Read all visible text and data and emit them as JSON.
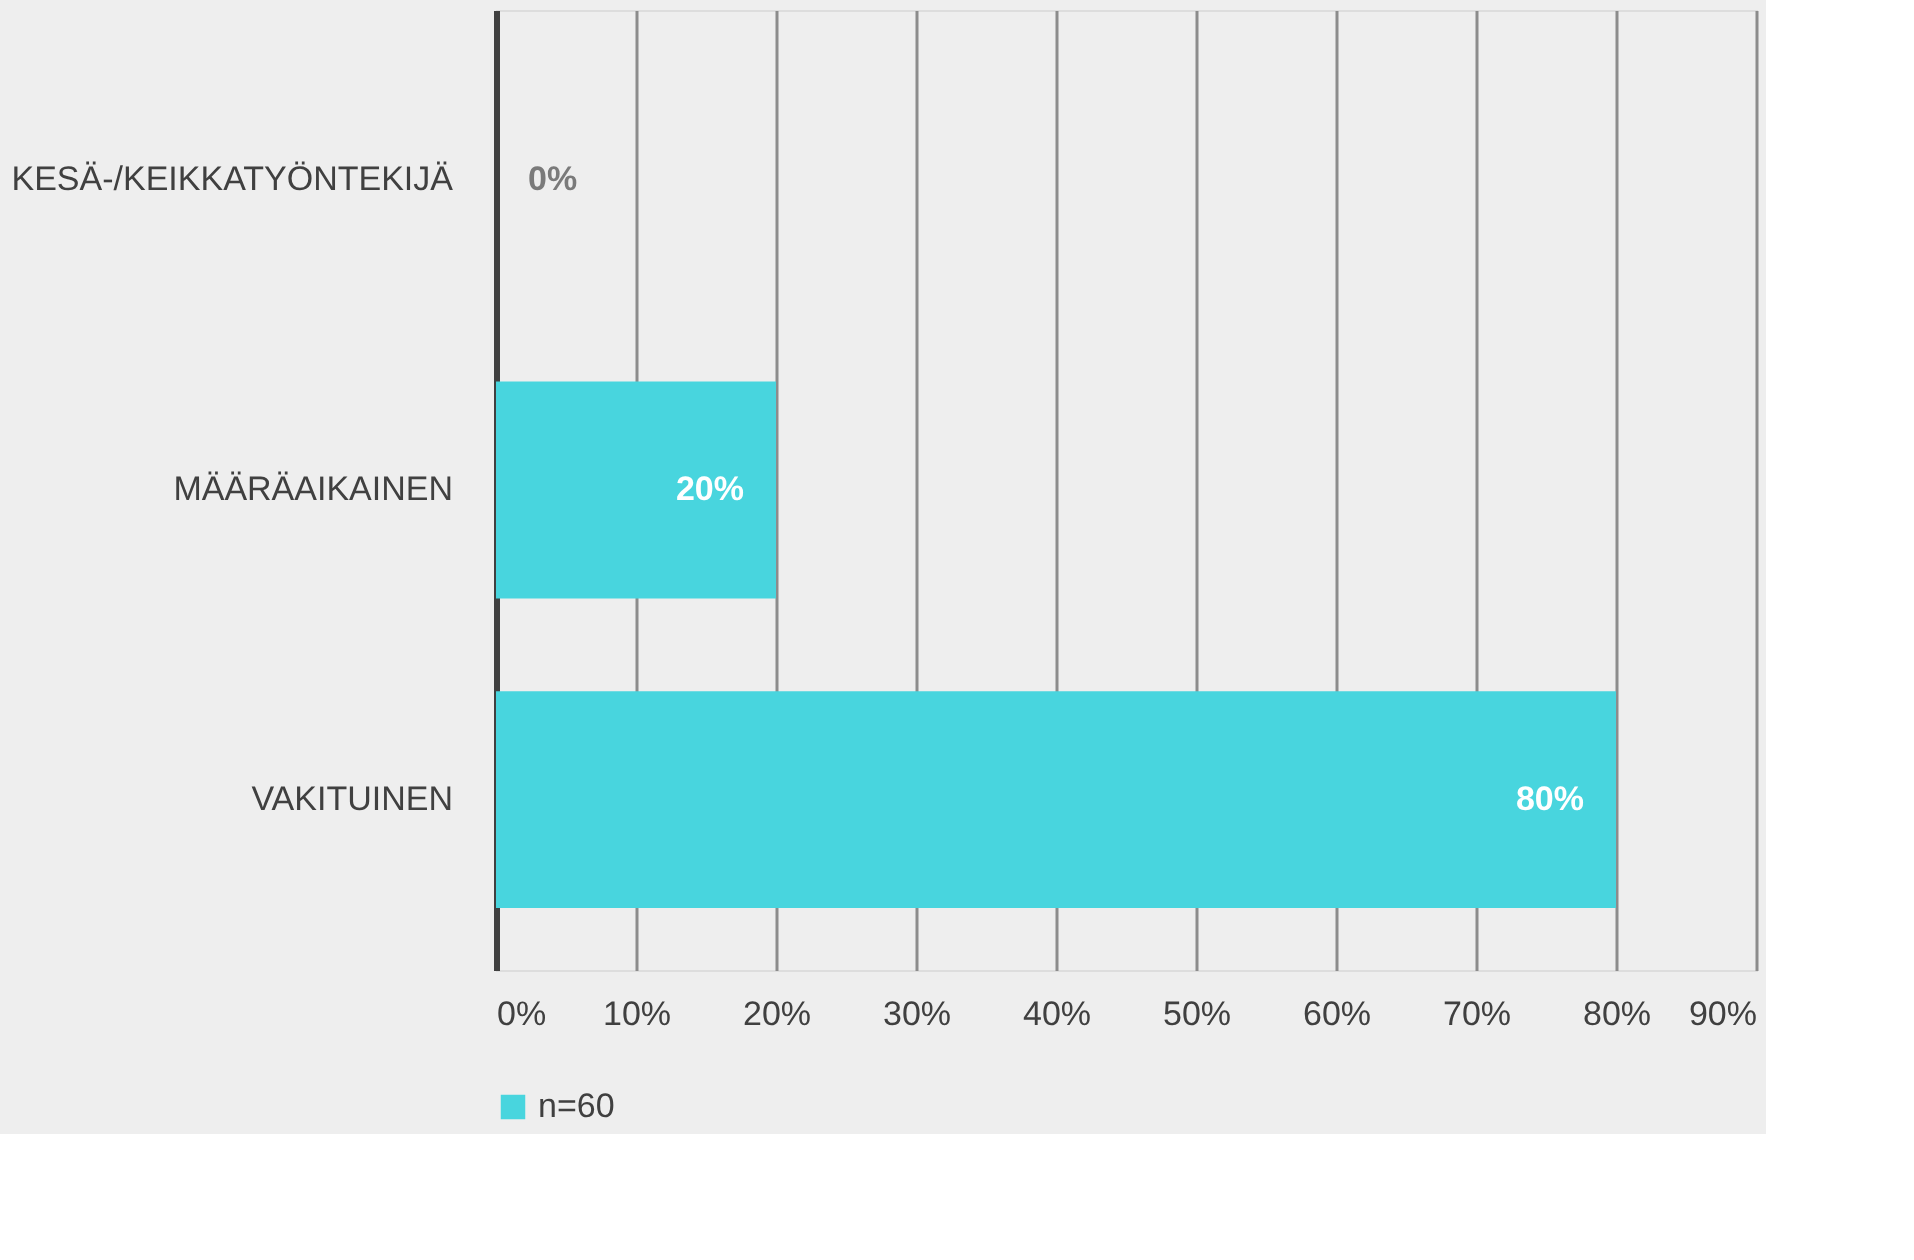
{
  "chart_data": {
    "type": "bar",
    "orientation": "horizontal",
    "categories": [
      "KESÄ-/KEIKKATYÖNTEKIJÄ",
      "MÄÄRÄAIKAINEN",
      "VAKITUINEN"
    ],
    "series": [
      {
        "name": "n=60",
        "color": "#48d5de",
        "values": [
          0,
          20,
          80
        ],
        "value_labels": [
          "0%",
          "20%",
          "80%"
        ]
      }
    ],
    "xlim": [
      0,
      90
    ],
    "xticks": [
      {
        "value": 0,
        "label": "0%"
      },
      {
        "value": 10,
        "label": "10%"
      },
      {
        "value": 20,
        "label": "20%"
      },
      {
        "value": 30,
        "label": "30%"
      },
      {
        "value": 40,
        "label": "40%"
      },
      {
        "value": 50,
        "label": "50%"
      },
      {
        "value": 60,
        "label": "60%"
      },
      {
        "value": 70,
        "label": "70%"
      },
      {
        "value": 80,
        "label": "80%"
      },
      {
        "value": 90,
        "label": "90%"
      }
    ],
    "grid": "x",
    "legend": "bottom"
  }
}
